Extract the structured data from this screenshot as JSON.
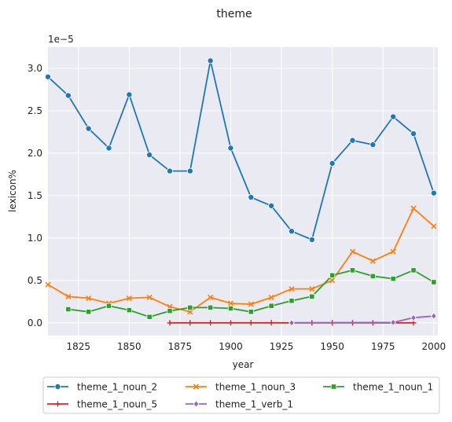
{
  "chart_data": {
    "type": "line",
    "title": "theme",
    "xlabel": "year",
    "ylabel": "lexicon%",
    "y_scale_label": "1e−5",
    "xlim": [
      1810,
      2002
    ],
    "ylim": [
      -0.15,
      3.25
    ],
    "xticks": [
      1825,
      1850,
      1875,
      1900,
      1925,
      1950,
      1975,
      2000
    ],
    "yticks": [
      0.0,
      0.5,
      1.0,
      1.5,
      2.0,
      2.5,
      3.0
    ],
    "ytick_labels": [
      "0.0",
      "0.5",
      "1.0",
      "1.5",
      "2.0",
      "2.5",
      "3.0"
    ],
    "grid": true,
    "legend_position": "bottom",
    "series": [
      {
        "name": "theme_1_noun_2",
        "color": "#1f77b4",
        "marker": "circle",
        "x": [
          1810,
          1820,
          1830,
          1840,
          1850,
          1860,
          1870,
          1880,
          1890,
          1900,
          1910,
          1920,
          1930,
          1940,
          1950,
          1960,
          1970,
          1980,
          1990,
          2000
        ],
        "values": [
          2.9,
          2.68,
          2.29,
          2.06,
          2.69,
          1.98,
          1.79,
          1.79,
          3.09,
          2.06,
          1.48,
          1.38,
          1.08,
          0.98,
          1.88,
          2.15,
          2.1,
          2.43,
          2.23,
          1.53
        ]
      },
      {
        "name": "theme_1_noun_3",
        "color": "#ff7f0e",
        "marker": "x",
        "x": [
          1810,
          1820,
          1830,
          1840,
          1850,
          1860,
          1870,
          1880,
          1890,
          1900,
          1910,
          1920,
          1930,
          1940,
          1950,
          1960,
          1970,
          1980,
          1990,
          2000
        ],
        "values": [
          0.45,
          0.31,
          0.29,
          0.23,
          0.29,
          0.3,
          0.19,
          0.13,
          0.3,
          0.23,
          0.22,
          0.3,
          0.4,
          0.4,
          0.5,
          0.84,
          0.73,
          0.84,
          1.35,
          1.14
        ]
      },
      {
        "name": "theme_1_noun_1",
        "color": "#2ca02c",
        "marker": "square",
        "x": [
          1820,
          1830,
          1840,
          1850,
          1860,
          1870,
          1880,
          1890,
          1900,
          1910,
          1920,
          1930,
          1940,
          1950,
          1960,
          1970,
          1980,
          1990,
          2000
        ],
        "values": [
          0.16,
          0.13,
          0.2,
          0.15,
          0.07,
          0.14,
          0.18,
          0.18,
          0.17,
          0.13,
          0.2,
          0.26,
          0.31,
          0.56,
          0.62,
          0.55,
          0.52,
          0.62,
          0.48
        ]
      },
      {
        "name": "theme_1_noun_5",
        "color": "#d62728",
        "marker": "plus",
        "x": [
          1870,
          1880,
          1890,
          1900,
          1910,
          1920,
          1930,
          1940,
          1950,
          1960,
          1970,
          1980,
          1990
        ],
        "values": [
          0.0,
          0.0,
          0.0,
          0.0,
          0.0,
          0.0,
          0.0,
          0.0,
          0.0,
          0.0,
          0.0,
          0.0,
          0.0
        ]
      },
      {
        "name": "theme_1_verb_1",
        "color": "#9467bd",
        "marker": "diamond",
        "x": [
          1930,
          1980,
          1990,
          2000
        ],
        "values": [
          0.0,
          0.005,
          0.06,
          0.08
        ]
      }
    ]
  }
}
